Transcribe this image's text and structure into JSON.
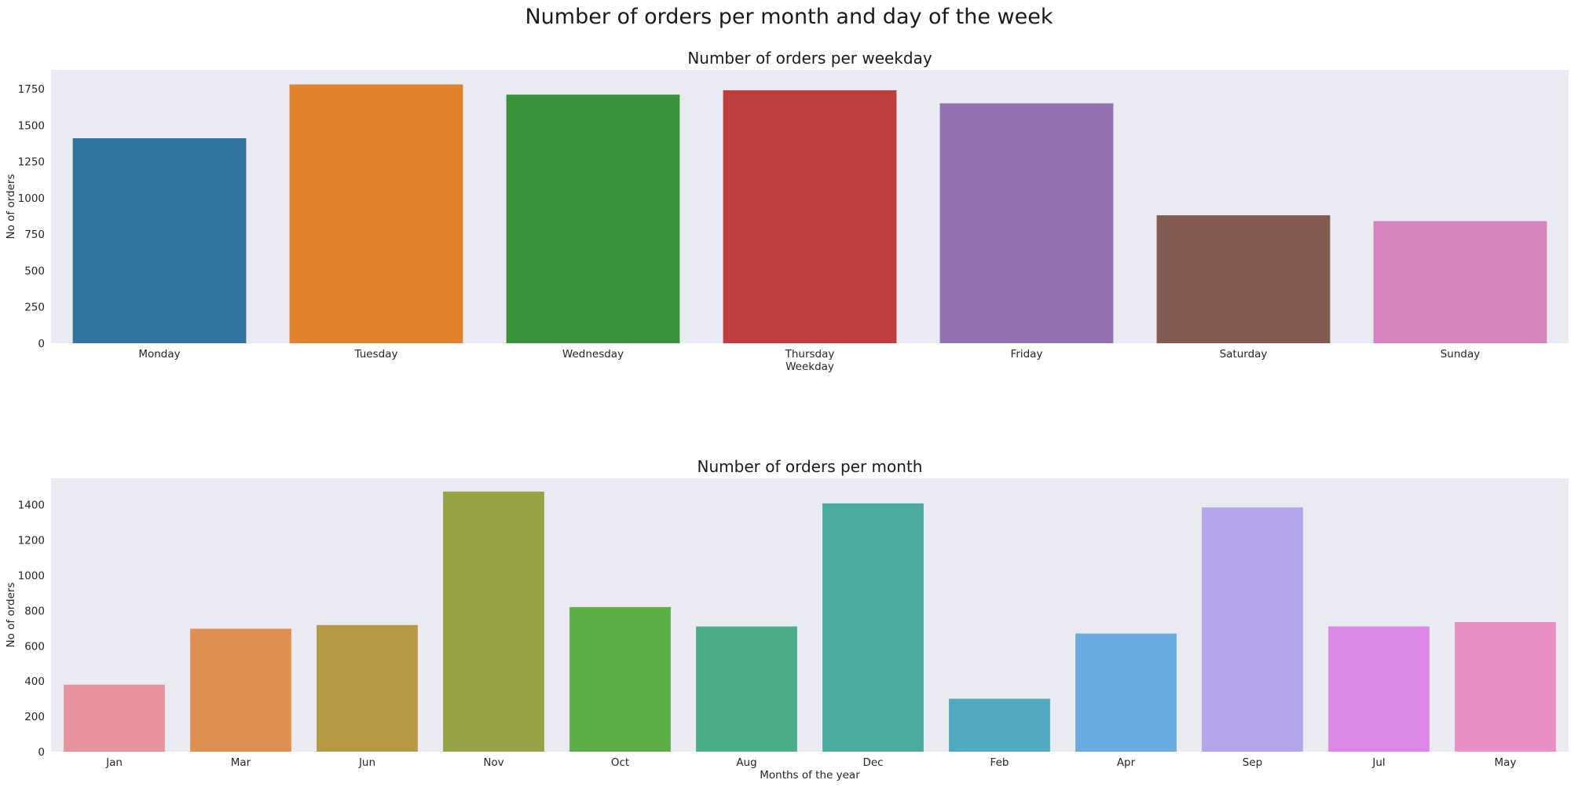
{
  "figure": {
    "suptitle": "Number of orders per month and day of the week"
  },
  "colors": {
    "axes_background": "#eaeaf2",
    "text": "#262626"
  },
  "chart_data": [
    {
      "type": "bar",
      "title": "Number of orders per weekday",
      "xlabel": "Weekday",
      "ylabel": "No of orders",
      "categories": [
        "Monday",
        "Tuesday",
        "Wednesday",
        "Thursday",
        "Friday",
        "Saturday",
        "Sunday"
      ],
      "values": [
        1410,
        1780,
        1710,
        1740,
        1650,
        880,
        840
      ],
      "colors": [
        "#3274a1",
        "#e1812c",
        "#3a923a",
        "#c03d3e",
        "#9372b2",
        "#845b53",
        "#d684bd"
      ],
      "ylim": [
        0,
        1880
      ],
      "yticks": [
        0,
        250,
        500,
        750,
        1000,
        1250,
        1500,
        1750
      ],
      "grid": false
    },
    {
      "type": "bar",
      "title": "Number of orders per month",
      "xlabel": "Months of the year",
      "ylabel": "No of orders",
      "categories": [
        "Jan",
        "Mar",
        "Jun",
        "Nov",
        "Oct",
        "Aug",
        "Dec",
        "Feb",
        "Apr",
        "Sep",
        "Jul",
        "May"
      ],
      "values": [
        380,
        697,
        718,
        1475,
        820,
        710,
        1408,
        300,
        670,
        1385,
        710,
        735
      ],
      "colors": [
        "#e8939d",
        "#e08f53",
        "#b89a46",
        "#98a346",
        "#5dae46",
        "#4aad88",
        "#4cab9f",
        "#50a9bc",
        "#6aacdf",
        "#b5a6eb",
        "#dc88e7",
        "#e88fc4"
      ],
      "ylim": [
        0,
        1550
      ],
      "yticks": [
        0,
        200,
        400,
        600,
        800,
        1000,
        1200,
        1400
      ],
      "grid": false
    }
  ]
}
